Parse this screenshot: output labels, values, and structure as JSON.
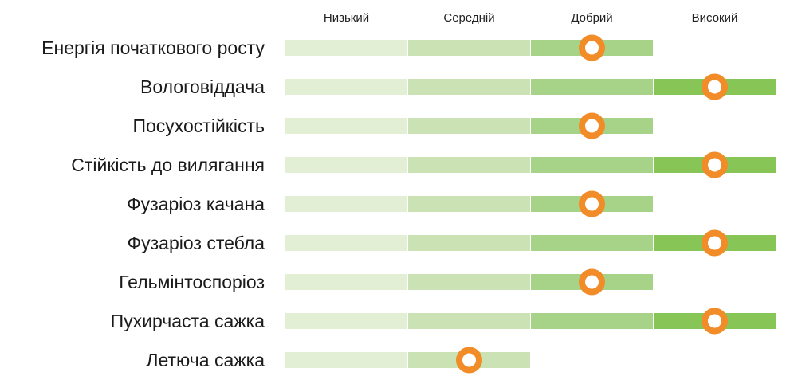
{
  "chart_data": {
    "type": "rating-scale",
    "levels": [
      "Низький",
      "Середній",
      "Добрий",
      "Високий"
    ],
    "level_colors": [
      "#e3efd5",
      "#cbe3b4",
      "#a6d387",
      "#88c557"
    ],
    "marker_color": "#f28c28",
    "traits": [
      {
        "label": "Енергія початкового росту",
        "rating": 3
      },
      {
        "label": "Вологовіддача",
        "rating": 4
      },
      {
        "label": "Посухостійкість",
        "rating": 3
      },
      {
        "label": "Стійкість до вилягання",
        "rating": 4
      },
      {
        "label": "Фузаріоз качана",
        "rating": 3
      },
      {
        "label": "Фузаріоз стебла",
        "rating": 4
      },
      {
        "label": "Гельмінтоспоріоз",
        "rating": 3
      },
      {
        "label": "Пухирчаста сажка",
        "rating": 4
      },
      {
        "label": "Летюча сажка",
        "rating": 2
      }
    ]
  }
}
